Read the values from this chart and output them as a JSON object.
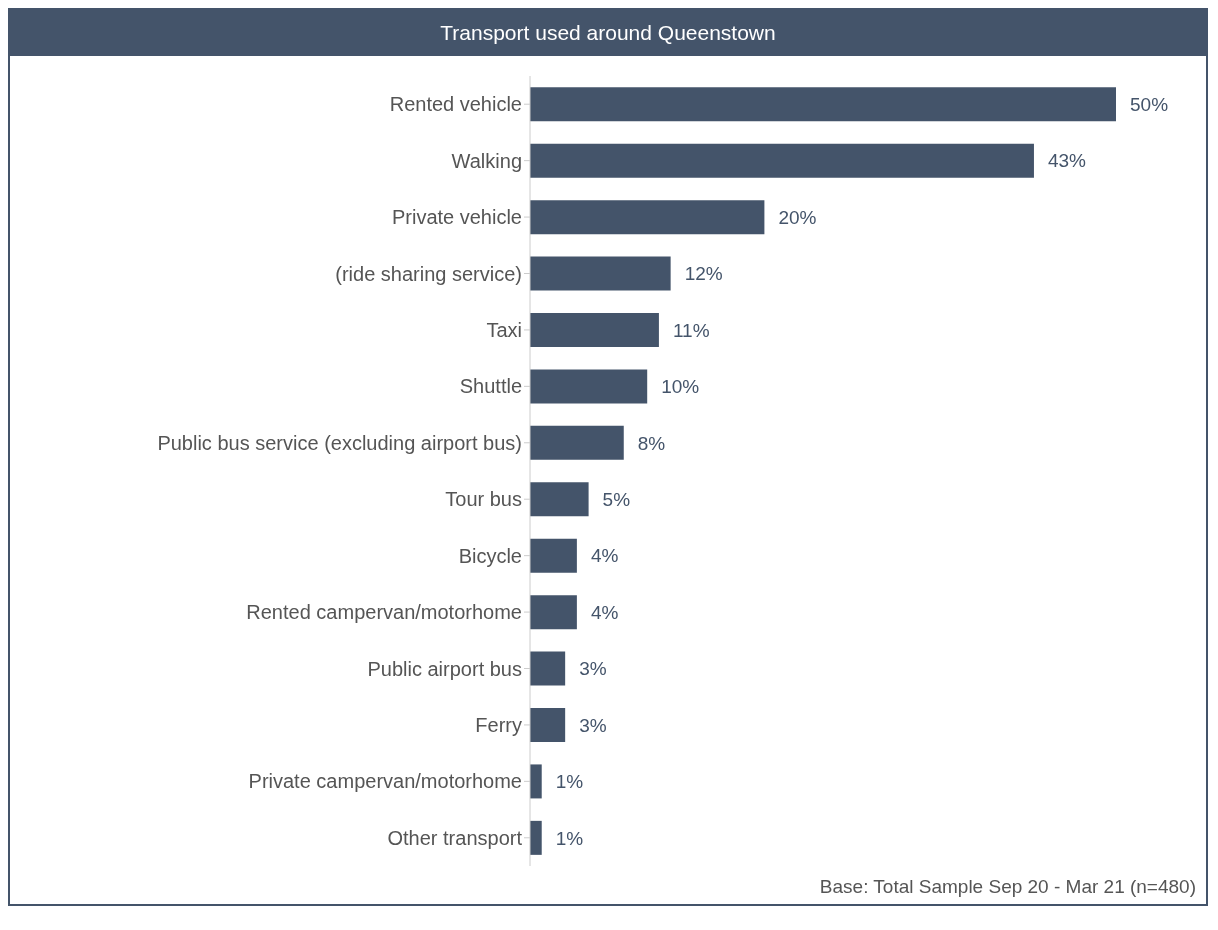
{
  "chart_data": {
    "type": "bar",
    "orientation": "horizontal",
    "title": "Transport used around Queenstown",
    "categories": [
      "Rented vehicle",
      "Walking",
      "Private vehicle",
      "(ride sharing service)",
      "Taxi",
      "Shuttle",
      "Public bus service (excluding airport bus)",
      "Tour bus",
      "Bicycle",
      "Rented campervan/motorhome",
      "Public airport bus",
      "Ferry",
      "Private campervan/motorhome",
      "Other transport"
    ],
    "values": [
      50,
      43,
      20,
      12,
      11,
      10,
      8,
      5,
      4,
      4,
      3,
      3,
      1,
      1
    ],
    "value_labels": [
      "50%",
      "43%",
      "20%",
      "12%",
      "11%",
      "10%",
      "8%",
      "5%",
      "4%",
      "4%",
      "3%",
      "3%",
      "1%",
      "1%"
    ],
    "color": "#44546a",
    "annotations": [
      "Base: Total Sample Sep 20 - Mar 21 (n=480)"
    ],
    "tick_labels": "y"
  }
}
